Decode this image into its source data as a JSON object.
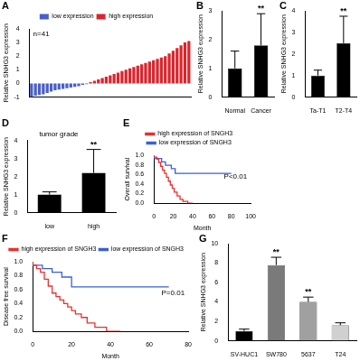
{
  "chart_data": [
    {
      "panel": "A",
      "type": "bar",
      "categories": [
        null,
        null,
        null,
        null,
        null,
        null,
        null,
        null,
        null,
        null,
        null,
        null,
        null,
        null,
        null,
        null,
        null,
        null,
        null,
        null,
        null,
        null,
        null,
        null,
        null,
        null,
        null,
        null,
        null,
        null,
        null,
        null,
        null,
        null,
        null,
        null,
        null,
        null,
        null,
        null,
        null
      ],
      "series": [
        {
          "name": "low expression",
          "color": "#4a5fc8",
          "values": [
            -1.0,
            -0.9,
            -0.85,
            -0.8,
            -0.7,
            -0.6,
            -0.5,
            -0.45,
            -0.4,
            -0.35,
            -0.3,
            -0.25,
            -0.2,
            -0.1,
            -0.05,
            null,
            null,
            null,
            null,
            null,
            null,
            null,
            null,
            null,
            null,
            null,
            null,
            null,
            null,
            null,
            null,
            null,
            null,
            null,
            null,
            null,
            null,
            null,
            null,
            null,
            null
          ]
        },
        {
          "name": "high expression",
          "color": "#d9262e",
          "values": [
            null,
            null,
            null,
            null,
            null,
            null,
            null,
            null,
            null,
            null,
            null,
            null,
            null,
            null,
            null,
            0.1,
            0.2,
            0.3,
            0.4,
            0.5,
            0.6,
            0.7,
            0.8,
            0.9,
            1.0,
            1.1,
            1.2,
            1.3,
            1.4,
            1.5,
            1.6,
            1.7,
            1.8,
            1.9,
            2.0,
            2.2,
            2.4,
            2.6,
            2.8,
            3.0,
            3.1
          ]
        }
      ],
      "ylabel": "Relative SNHG3 expression",
      "ylim": [
        -1,
        4
      ],
      "yticks": [
        -1,
        0,
        1,
        2,
        3,
        4
      ],
      "legend": "top",
      "grid": false,
      "annotations": [
        {
          "text": "n=41"
        }
      ]
    },
    {
      "panel": "B",
      "type": "bar",
      "categories": [
        "Normal",
        "Cancer"
      ],
      "values": [
        1.0,
        1.8
      ],
      "errors": [
        0.6,
        1.1
      ],
      "color": "#000000",
      "ylabel": "Relative SNHG3 expression",
      "ylim": [
        0,
        3
      ],
      "yticks": [
        0,
        1,
        2,
        3
      ],
      "grid": false,
      "annotations": [
        {
          "text": "**",
          "category": "Cancer"
        }
      ]
    },
    {
      "panel": "C",
      "type": "bar",
      "categories": [
        "Ta-T1",
        "T2-T4"
      ],
      "values": [
        1.0,
        2.5
      ],
      "errors": [
        0.25,
        1.25
      ],
      "color": "#000000",
      "ylabel": "Relative SNHG3 expression",
      "ylim": [
        0,
        4
      ],
      "yticks": [
        0,
        1,
        2,
        3,
        4
      ],
      "grid": false,
      "annotations": [
        {
          "text": "**",
          "category": "T2-T4"
        }
      ]
    },
    {
      "panel": "D",
      "type": "bar",
      "title": "tumor grade",
      "categories": [
        "low",
        "high"
      ],
      "values": [
        1.0,
        2.2
      ],
      "errors": [
        0.15,
        1.3
      ],
      "color": "#000000",
      "ylabel": "Relative SNHG3 expression",
      "ylim": [
        0,
        4
      ],
      "yticks": [
        0,
        1,
        2,
        3,
        4
      ],
      "grid": false,
      "annotations": [
        {
          "text": "**",
          "category": "high"
        }
      ]
    },
    {
      "panel": "E",
      "type": "step",
      "series": [
        {
          "name": "high expression of SNGH3",
          "color": "#e8312f",
          "x": [
            0,
            3,
            5,
            7,
            9,
            11,
            13,
            15,
            17,
            19,
            21,
            24,
            27,
            30,
            35,
            40
          ],
          "values": [
            1.0,
            0.96,
            0.92,
            0.85,
            0.77,
            0.69,
            0.62,
            0.54,
            0.46,
            0.38,
            0.31,
            0.23,
            0.15,
            0.08,
            0.04,
            0.0
          ]
        },
        {
          "name": "low expression of SNGH3",
          "color": "#3d5fd6",
          "x": [
            0,
            8,
            12,
            18,
            22,
            28,
            80
          ],
          "values": [
            1.0,
            0.93,
            0.86,
            0.79,
            0.72,
            0.62,
            0.62
          ]
        }
      ],
      "xlabel": "Month",
      "ylabel": "Overall survival",
      "xlim": [
        0,
        100
      ],
      "xticks": [
        0,
        20,
        40,
        60,
        80,
        100
      ],
      "ylim": [
        0,
        1
      ],
      "yticks": [
        {
          "value": 0,
          "label": "0.0"
        },
        {
          "value": 0.2,
          "label": "0.2"
        },
        {
          "value": 0.4,
          "label": "0.4"
        },
        {
          "value": 0.6,
          "label": "0.6"
        },
        {
          "value": 0.8,
          "label": "0.8"
        },
        {
          "value": 1,
          "label": "1.0"
        }
      ],
      "legend": "top",
      "grid": false,
      "annotations": [
        {
          "text": "P<0.01"
        }
      ]
    },
    {
      "panel": "F",
      "type": "step",
      "series": [
        {
          "name": "high expression of SNGH3",
          "color": "#e8312f",
          "x": [
            0,
            2,
            4,
            6,
            8,
            10,
            12,
            14,
            16,
            18,
            20,
            22,
            25,
            28,
            32,
            38,
            45
          ],
          "values": [
            1.0,
            0.95,
            0.9,
            0.85,
            0.75,
            0.65,
            0.55,
            0.5,
            0.45,
            0.4,
            0.35,
            0.3,
            0.25,
            0.2,
            0.12,
            0.06,
            0.0
          ]
        },
        {
          "name": "low expression of SNGH3",
          "color": "#3d5fd6",
          "x": [
            0,
            5,
            10,
            15,
            20,
            25,
            70
          ],
          "values": [
            1.0,
            0.95,
            0.9,
            0.85,
            0.78,
            0.64,
            0.64
          ]
        }
      ],
      "xlabel": "Month",
      "ylabel": "Disease free survival",
      "xlim": [
        0,
        80
      ],
      "xticks": [
        0,
        20,
        40,
        60,
        80
      ],
      "ylim": [
        0,
        1
      ],
      "yticks": [
        {
          "value": 0,
          "label": "0.0"
        },
        {
          "value": 0.2,
          "label": "0.2"
        },
        {
          "value": 0.4,
          "label": "0.4"
        },
        {
          "value": 0.6,
          "label": "0.6"
        },
        {
          "value": 0.8,
          "label": "0.8"
        },
        {
          "value": 1,
          "label": "1.0"
        }
      ],
      "legend": "top",
      "grid": false,
      "annotations": [
        {
          "text": "P=0.01"
        }
      ]
    },
    {
      "panel": "G",
      "type": "bar",
      "categories": [
        "SV-HUC1",
        "SW780",
        "5637",
        "T24"
      ],
      "values": [
        1.0,
        7.8,
        4.0,
        1.6
      ],
      "errors": [
        0.2,
        0.8,
        0.5,
        0.25
      ],
      "colors": [
        "#000000",
        "#7a7a7a",
        "#a0a0a0",
        "#d0d0d0"
      ],
      "ylabel": "Relative SNHG3 expression",
      "ylim": [
        0,
        10
      ],
      "yticks": [
        0,
        2,
        4,
        6,
        8,
        10
      ],
      "grid": false,
      "annotations": [
        {
          "text": "**",
          "category": "SW780"
        },
        {
          "text": "**",
          "category": "5637"
        }
      ]
    }
  ]
}
